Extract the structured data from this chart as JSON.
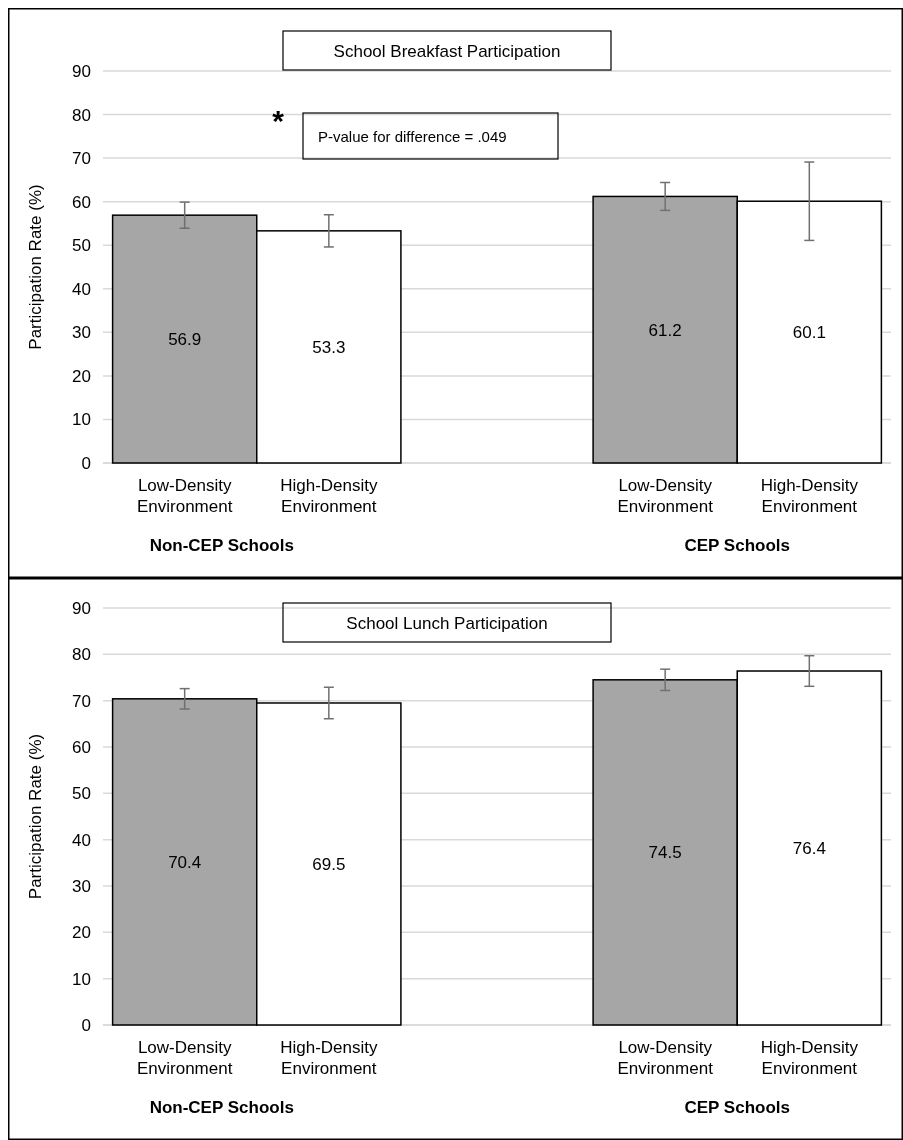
{
  "chart_data": [
    {
      "type": "bar",
      "title": "School Breakfast Participation",
      "ylabel": "Participation Rate (%)",
      "categories": [
        "Non-CEP Schools",
        "CEP Schools"
      ],
      "series": [
        {
          "name": "Low-Density Environment",
          "color": "#a6a6a6",
          "values": [
            56.9,
            61.2
          ],
          "errors": [
            3,
            3.2
          ]
        },
        {
          "name": "High-Density Environment",
          "color": "#ffffff",
          "values": [
            53.3,
            60.1
          ],
          "errors": [
            3.7,
            9
          ]
        }
      ],
      "ylim": [
        0,
        90
      ],
      "yticks": [
        0,
        10,
        20,
        30,
        40,
        50,
        60,
        70,
        80,
        90
      ],
      "grid": "y",
      "data_labels": true,
      "annotations": [
        "*",
        "P-value for difference = .049"
      ]
    },
    {
      "type": "bar",
      "title": "School Lunch Participation",
      "ylabel": "Participation Rate (%)",
      "categories": [
        "Non-CEP Schools",
        "CEP Schools"
      ],
      "series": [
        {
          "name": "Low-Density Environment",
          "color": "#a6a6a6",
          "values": [
            70.4,
            74.5
          ],
          "errors": [
            2.2,
            2.3
          ]
        },
        {
          "name": "High-Density Environment",
          "color": "#ffffff",
          "values": [
            69.5,
            76.4
          ],
          "errors": [
            3.4,
            3.3
          ]
        }
      ],
      "ylim": [
        0,
        90
      ],
      "yticks": [
        0,
        10,
        20,
        30,
        40,
        50,
        60,
        70,
        80,
        90
      ],
      "grid": "y",
      "data_labels": true
    }
  ]
}
